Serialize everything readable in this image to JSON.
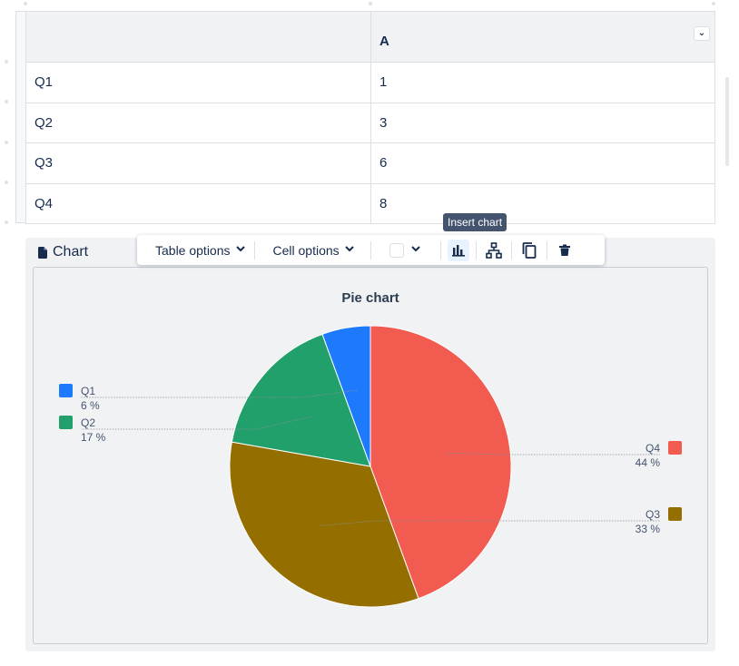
{
  "table": {
    "header": [
      "",
      "A"
    ],
    "rows": [
      [
        "Q1",
        "1"
      ],
      [
        "Q2",
        "3"
      ],
      [
        "Q3",
        "6"
      ],
      [
        "Q4",
        "8"
      ]
    ]
  },
  "toolbar": {
    "table_options": "Table options",
    "cell_options": "Cell options",
    "tooltip": "Insert chart"
  },
  "chart_panel": {
    "label": "Chart"
  },
  "icons": {
    "column_dropdown": "chevron-down-icon",
    "chart_label": "document-icon",
    "insert_chart": "bar-chart-icon",
    "hierarchy": "hierarchy-icon",
    "copy": "copy-icon",
    "delete": "trash-icon"
  },
  "chart_data": {
    "type": "pie",
    "title": "Pie chart",
    "slices": [
      {
        "label": "Q1",
        "value": 1,
        "percent_label": "6 %",
        "color": "#1d7afc"
      },
      {
        "label": "Q2",
        "value": 3,
        "percent_label": "17 %",
        "color": "#22a06b"
      },
      {
        "label": "Q3",
        "value": 6,
        "percent_label": "33 %",
        "color": "#946f00"
      },
      {
        "label": "Q4",
        "value": 8,
        "percent_label": "44 %",
        "color": "#f15b50"
      }
    ],
    "legend": "left-and-right"
  }
}
